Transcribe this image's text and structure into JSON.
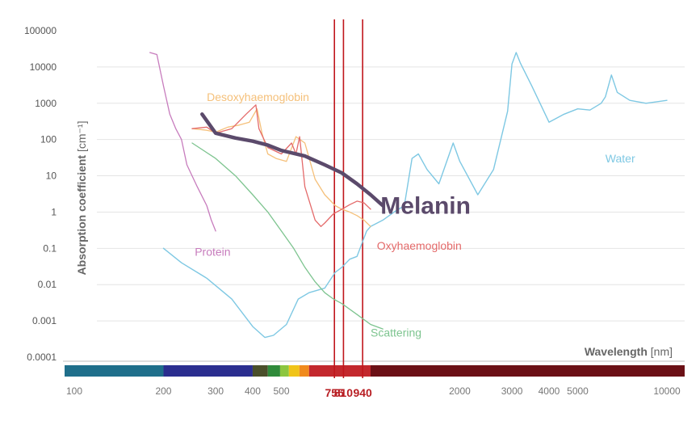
{
  "chart_data": {
    "type": "line",
    "title": "",
    "xlabel": "Wavelength",
    "xunit": "[nm]",
    "ylabel": "Absorption coefficient",
    "yunit": "[cm⁻¹]",
    "x_scale": "log",
    "y_scale": "log",
    "xlim": [
      100,
      10000
    ],
    "ylim": [
      0.0001,
      100000
    ],
    "y_ticks": [
      {
        "value": 100000,
        "label": "100000"
      },
      {
        "value": 10000,
        "label": "10000"
      },
      {
        "value": 1000,
        "label": "1000"
      },
      {
        "value": 100,
        "label": "100"
      },
      {
        "value": 10,
        "label": "10"
      },
      {
        "value": 1,
        "label": "1"
      },
      {
        "value": 0.1,
        "label": "0.1"
      },
      {
        "value": 0.01,
        "label": "0.01"
      },
      {
        "value": 0.001,
        "label": "0.001"
      },
      {
        "value": 0.0001,
        "label": "0.0001"
      }
    ],
    "x_ticks": [
      {
        "value": 100,
        "label": "100",
        "highlight": false
      },
      {
        "value": 200,
        "label": "200",
        "highlight": false
      },
      {
        "value": 300,
        "label": "300",
        "highlight": false
      },
      {
        "value": 400,
        "label": "400",
        "highlight": false
      },
      {
        "value": 500,
        "label": "500",
        "highlight": false
      },
      {
        "value": 755,
        "label": "755",
        "highlight": true
      },
      {
        "value": 810,
        "label": "810",
        "highlight": true
      },
      {
        "value": 940,
        "label": "940",
        "highlight": true
      },
      {
        "value": 2000,
        "label": "2000",
        "highlight": false
      },
      {
        "value": 3000,
        "label": "3000",
        "highlight": false
      },
      {
        "value": 4000,
        "label": "4000",
        "highlight": false
      },
      {
        "value": 5000,
        "label": "5000",
        "highlight": false
      },
      {
        "value": 10000,
        "label": "10000",
        "highlight": false
      }
    ],
    "reference_lines": [
      755,
      810,
      940
    ],
    "spectrum_bar": [
      {
        "from": 100,
        "to": 200,
        "color": "#1f6f8b"
      },
      {
        "from": 200,
        "to": 400,
        "color": "#2b2e8f"
      },
      {
        "from": 400,
        "to": 450,
        "color": "#4a4f2a"
      },
      {
        "from": 450,
        "to": 495,
        "color": "#2f8a3a"
      },
      {
        "from": 495,
        "to": 530,
        "color": "#8cc63f"
      },
      {
        "from": 530,
        "to": 575,
        "color": "#f0c419"
      },
      {
        "from": 575,
        "to": 620,
        "color": "#f08a1c"
      },
      {
        "from": 620,
        "to": 1000,
        "color": "#c3282d"
      },
      {
        "from": 1000,
        "to": 10000,
        "color": "#6b1016"
      }
    ],
    "series": [
      {
        "name": "Water",
        "color": "#7ec8e3",
        "width": 1.4,
        "label_at": [
          6200,
          30
        ],
        "points": [
          [
            200,
            0.1
          ],
          [
            230,
            0.04
          ],
          [
            280,
            0.015
          ],
          [
            340,
            0.004
          ],
          [
            400,
            0.0007
          ],
          [
            440,
            0.00035
          ],
          [
            470,
            0.0004
          ],
          [
            520,
            0.0008
          ],
          [
            570,
            0.004
          ],
          [
            620,
            0.006
          ],
          [
            700,
            0.008
          ],
          [
            760,
            0.022
          ],
          [
            800,
            0.03
          ],
          [
            850,
            0.05
          ],
          [
            900,
            0.06
          ],
          [
            970,
            0.3
          ],
          [
            1000,
            0.4
          ],
          [
            1100,
            0.6
          ],
          [
            1200,
            1.0
          ],
          [
            1300,
            1.5
          ],
          [
            1380,
            30
          ],
          [
            1450,
            40
          ],
          [
            1550,
            15
          ],
          [
            1700,
            6
          ],
          [
            1900,
            80
          ],
          [
            2000,
            25
          ],
          [
            2300,
            3
          ],
          [
            2600,
            15
          ],
          [
            2900,
            600
          ],
          [
            3000,
            12000
          ],
          [
            3100,
            25000
          ],
          [
            3200,
            13000
          ],
          [
            3500,
            3000
          ],
          [
            4000,
            300
          ],
          [
            4500,
            500
          ],
          [
            5000,
            700
          ],
          [
            5500,
            650
          ],
          [
            6000,
            1000
          ],
          [
            6200,
            1500
          ],
          [
            6500,
            6000
          ],
          [
            6800,
            2000
          ],
          [
            7500,
            1200
          ],
          [
            8500,
            1000
          ],
          [
            10000,
            1200
          ]
        ]
      },
      {
        "name": "Desoxyhaemoglobin",
        "color": "#f5c07a",
        "width": 1.3,
        "label_at": [
          280,
          1500
        ],
        "points": [
          [
            250,
            200
          ],
          [
            280,
            180
          ],
          [
            300,
            160
          ],
          [
            330,
            220
          ],
          [
            360,
            250
          ],
          [
            390,
            300
          ],
          [
            414,
            700
          ],
          [
            430,
            150
          ],
          [
            450,
            40
          ],
          [
            480,
            30
          ],
          [
            520,
            25
          ],
          [
            560,
            120
          ],
          [
            600,
            80
          ],
          [
            650,
            8
          ],
          [
            700,
            3
          ],
          [
            760,
            1.5
          ],
          [
            800,
            1.2
          ],
          [
            850,
            1.0
          ],
          [
            900,
            0.8
          ],
          [
            950,
            0.6
          ],
          [
            1000,
            0.4
          ]
        ]
      },
      {
        "name": "Oxyhaemoglobin",
        "color": "#e46a6a",
        "width": 1.3,
        "label_at": [
          1050,
          0.12
        ],
        "points": [
          [
            250,
            200
          ],
          [
            280,
            220
          ],
          [
            300,
            150
          ],
          [
            340,
            200
          ],
          [
            380,
            500
          ],
          [
            410,
            900
          ],
          [
            420,
            200
          ],
          [
            450,
            60
          ],
          [
            500,
            40
          ],
          [
            541,
            80
          ],
          [
            560,
            40
          ],
          [
            576,
            120
          ],
          [
            600,
            5
          ],
          [
            650,
            0.6
          ],
          [
            680,
            0.4
          ],
          [
            700,
            0.5
          ],
          [
            750,
            0.9
          ],
          [
            800,
            1.2
          ],
          [
            850,
            1.6
          ],
          [
            900,
            2
          ],
          [
            950,
            1.8
          ],
          [
            1000,
            1.2
          ]
        ]
      },
      {
        "name": "Protein",
        "color": "#c77cbd",
        "width": 1.3,
        "label_at": [
          255,
          0.08
        ],
        "points": [
          [
            180,
            25000
          ],
          [
            190,
            22000
          ],
          [
            200,
            3000
          ],
          [
            210,
            500
          ],
          [
            220,
            200
          ],
          [
            230,
            100
          ],
          [
            240,
            20
          ],
          [
            260,
            5
          ],
          [
            280,
            1.5
          ],
          [
            290,
            0.6
          ],
          [
            300,
            0.3
          ]
        ]
      },
      {
        "name": "Scattering",
        "color": "#7dc48f",
        "width": 1.3,
        "label_at": [
          1000,
          0.00048
        ],
        "points": [
          [
            250,
            80
          ],
          [
            300,
            30
          ],
          [
            350,
            10
          ],
          [
            400,
            3
          ],
          [
            450,
            1
          ],
          [
            500,
            0.3
          ],
          [
            550,
            0.1
          ],
          [
            600,
            0.03
          ],
          [
            650,
            0.012
          ],
          [
            700,
            0.006
          ],
          [
            750,
            0.004
          ],
          [
            800,
            0.003
          ],
          [
            900,
            0.0015
          ],
          [
            1000,
            0.0008
          ],
          [
            1100,
            0.0006
          ]
        ]
      },
      {
        "name": "Melanin",
        "color": "#5b4a6b",
        "width": 4.5,
        "label_at": [
          1080,
          1.5
        ],
        "points": [
          [
            270,
            500
          ],
          [
            300,
            150
          ],
          [
            350,
            110
          ],
          [
            400,
            90
          ],
          [
            450,
            70
          ],
          [
            500,
            50
          ],
          [
            600,
            35
          ],
          [
            700,
            20
          ],
          [
            800,
            12
          ],
          [
            900,
            6
          ],
          [
            1000,
            3
          ],
          [
            1100,
            1.5
          ]
        ]
      }
    ]
  }
}
